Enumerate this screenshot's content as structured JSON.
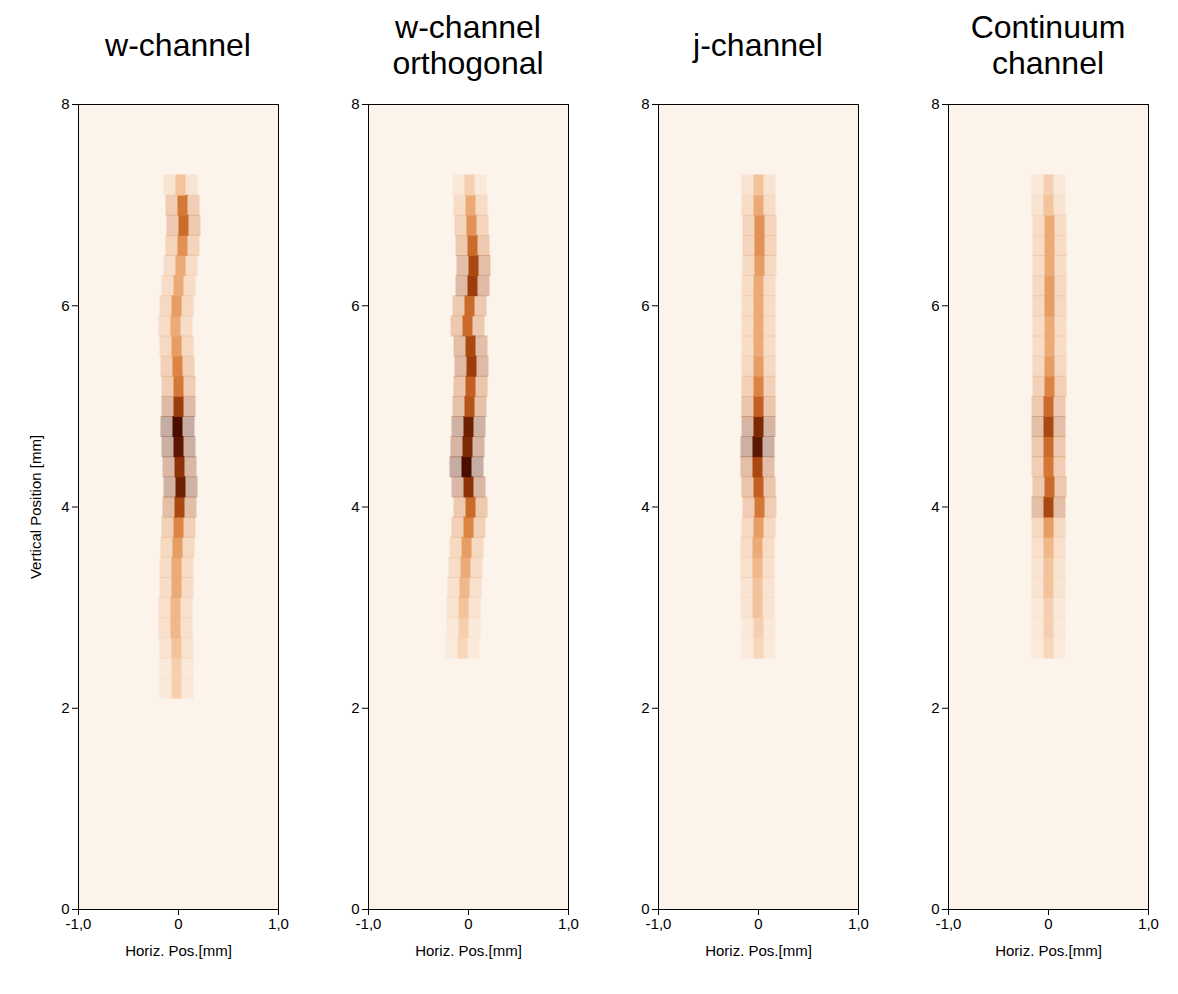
{
  "chart_data": [
    {
      "type": "image",
      "title": "w-channel",
      "x_label": "Horiz. Pos.[mm]",
      "y_label": "Vertical Position [mm]",
      "xlim": [
        -1,
        1
      ],
      "ylim": [
        0,
        8
      ],
      "xticks": [
        {
          "value": -1,
          "label": "-1,0"
        },
        0,
        {
          "value": 1,
          "label": "1,0"
        }
      ],
      "yticks": [
        0,
        2,
        4,
        6,
        8
      ],
      "intensity_lim": [
        0,
        1
      ],
      "ridge": {
        "y": [
          2.2,
          2.4,
          2.6,
          2.8,
          3.0,
          3.2,
          3.4,
          3.6,
          3.8,
          4.0,
          4.2,
          4.4,
          4.6,
          4.8,
          5.0,
          5.2,
          5.4,
          5.6,
          5.8,
          6.0,
          6.2,
          6.4,
          6.6,
          6.8,
          7.0,
          7.2
        ],
        "x": [
          -0.02,
          -0.02,
          -0.02,
          -0.03,
          -0.03,
          -0.02,
          -0.02,
          -0.01,
          0,
          0.01,
          0.02,
          0.01,
          0,
          -0.01,
          0,
          0,
          -0.01,
          -0.02,
          -0.03,
          -0.02,
          0,
          0.02,
          0.04,
          0.05,
          0.04,
          0.02
        ],
        "intensity": [
          0.15,
          0.15,
          0.2,
          0.25,
          0.25,
          0.3,
          0.3,
          0.35,
          0.45,
          0.7,
          0.9,
          0.8,
          0.95,
          1.0,
          0.75,
          0.5,
          0.45,
          0.35,
          0.3,
          0.35,
          0.3,
          0.3,
          0.4,
          0.55,
          0.5,
          0.2
        ]
      }
    },
    {
      "type": "image",
      "title": "w-channel orthogonal",
      "x_label": "Horiz. Pos.[mm]",
      "xlim": [
        -1,
        1
      ],
      "ylim": [
        0,
        8
      ],
      "xticks": [
        {
          "value": -1,
          "label": "-1,0"
        },
        0,
        {
          "value": 1,
          "label": "1,0"
        }
      ],
      "yticks": [
        0,
        2,
        4,
        6,
        8
      ],
      "intensity_lim": [
        0,
        1
      ],
      "ridge": {
        "y": [
          2.6,
          2.8,
          3.0,
          3.2,
          3.4,
          3.6,
          3.8,
          4.0,
          4.2,
          4.4,
          4.6,
          4.8,
          5.0,
          5.2,
          5.4,
          5.6,
          5.8,
          6.0,
          6.2,
          6.4,
          6.6,
          6.8,
          7.0,
          7.2
        ],
        "x": [
          -0.06,
          -0.05,
          -0.05,
          -0.04,
          -0.03,
          -0.02,
          0,
          0.02,
          0,
          -0.02,
          -0.01,
          0,
          0.01,
          0.02,
          0.03,
          0.02,
          -0.01,
          0.01,
          0.04,
          0.05,
          0.04,
          0.03,
          0.02,
          0.01
        ],
        "intensity": [
          0.12,
          0.15,
          0.2,
          0.25,
          0.3,
          0.35,
          0.45,
          0.55,
          0.8,
          1.0,
          0.85,
          0.9,
          0.65,
          0.6,
          0.75,
          0.7,
          0.55,
          0.55,
          0.75,
          0.7,
          0.55,
          0.4,
          0.3,
          0.15
        ]
      }
    },
    {
      "type": "image",
      "title": "j-channel",
      "x_label": "Horiz. Pos.[mm]",
      "xlim": [
        -1,
        1
      ],
      "ylim": [
        0,
        8
      ],
      "xticks": [
        {
          "value": -1,
          "label": "-1,0"
        },
        0,
        {
          "value": 1,
          "label": "1,0"
        }
      ],
      "yticks": [
        0,
        2,
        4,
        6,
        8
      ],
      "intensity_lim": [
        0,
        1
      ],
      "ridge": {
        "y": [
          2.6,
          2.8,
          3.0,
          3.2,
          3.4,
          3.6,
          3.8,
          4.0,
          4.2,
          4.4,
          4.6,
          4.8,
          5.0,
          5.2,
          5.4,
          5.6,
          5.8,
          6.0,
          6.2,
          6.4,
          6.6,
          6.8,
          7.0,
          7.2
        ],
        "x": [
          0,
          0,
          -0.01,
          -0.01,
          -0.01,
          -0.01,
          0,
          0.01,
          0,
          -0.01,
          -0.01,
          0,
          0,
          0,
          0,
          0,
          0,
          0,
          0,
          0.01,
          0.01,
          0.01,
          0,
          0
        ],
        "intensity": [
          0.12,
          0.15,
          0.2,
          0.2,
          0.25,
          0.3,
          0.35,
          0.5,
          0.6,
          0.7,
          0.95,
          0.85,
          0.6,
          0.45,
          0.35,
          0.3,
          0.3,
          0.3,
          0.3,
          0.35,
          0.4,
          0.4,
          0.3,
          0.2
        ]
      }
    },
    {
      "type": "image",
      "title": "Continuum channel",
      "x_label": "Horiz. Pos.[mm]",
      "xlim": [
        -1,
        1
      ],
      "ylim": [
        0,
        8
      ],
      "xticks": [
        {
          "value": -1,
          "label": "-1,0"
        },
        0,
        {
          "value": 1,
          "label": "1,0"
        }
      ],
      "yticks": [
        0,
        2,
        4,
        6,
        8
      ],
      "intensity_lim": [
        0,
        1
      ],
      "ridge": {
        "y": [
          2.6,
          2.8,
          3.0,
          3.2,
          3.4,
          3.6,
          3.8,
          4.0,
          4.2,
          4.4,
          4.6,
          4.8,
          5.0,
          5.2,
          5.4,
          5.6,
          5.8,
          6.0,
          6.2,
          6.4,
          6.6,
          6.8,
          7.0,
          7.2
        ],
        "x": [
          0,
          0,
          0,
          0,
          0,
          0,
          0,
          0,
          0.01,
          0,
          0,
          0,
          0,
          0.01,
          0.01,
          0.01,
          0.01,
          0.01,
          0.01,
          0.01,
          0.01,
          0.01,
          0,
          0
        ],
        "intensity": [
          0.12,
          0.15,
          0.15,
          0.2,
          0.2,
          0.25,
          0.35,
          0.7,
          0.55,
          0.5,
          0.55,
          0.7,
          0.55,
          0.45,
          0.35,
          0.3,
          0.3,
          0.35,
          0.35,
          0.3,
          0.3,
          0.3,
          0.2,
          0.15
        ]
      }
    }
  ]
}
